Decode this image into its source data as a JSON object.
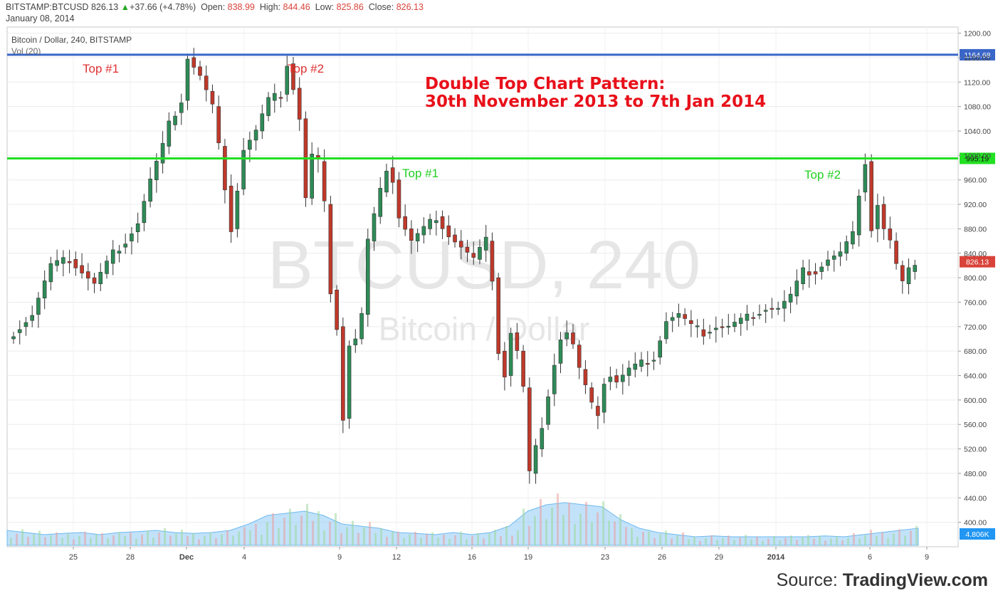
{
  "header": {
    "symbol": "BITSTAMP:BTCUSD",
    "last": "826.13",
    "change_arrow": "▲",
    "change": "+37.66 (+4.78%)",
    "open_label": "Open:",
    "open": "838.99",
    "high_label": "High:",
    "high": "844.46",
    "low_label": "Low:",
    "low": "825.86",
    "close_label": "Close:",
    "close": "826.13",
    "date": "January 08, 2014"
  },
  "legend": {
    "title": "Bitcoin / Dollar, 240, BITSTAMP",
    "volume": "Vol (20)"
  },
  "watermark": {
    "symbol": "BTCUSD, 240",
    "name": "Bitcoin / Dollar"
  },
  "annotations": {
    "headline_line1": "Double Top Chart Pattern:",
    "headline_line2": "30th November 2013 to 7th Jan 2014",
    "top1_upper": "Top #1",
    "top2_upper": "Top #2",
    "top1_lower": "Top #1",
    "top2_lower": "Top #2"
  },
  "source": {
    "prefix": "Source: ",
    "brand": "TradingView.com"
  },
  "colors": {
    "up": "#2e8b57",
    "down": "#c0392b",
    "upper_line": "#3a66c8",
    "lower_line": "#22e022",
    "headline": "#e8101a",
    "price_tag": "#d9433a",
    "volume_area": "#8fcaf5",
    "volume_tag": "#2196f3"
  },
  "chart_data": {
    "type": "candlestick",
    "price_axis": {
      "ylim": [
        360,
        1210
      ],
      "ticks": [
        "1200.00",
        "1160.00",
        "1120.00",
        "1080.00",
        "1040.00",
        "1000.00",
        "960.00",
        "920.00",
        "880.00",
        "840.00",
        "800.00",
        "760.00",
        "720.00",
        "680.00",
        "640.00",
        "600.00",
        "560.00",
        "520.00",
        "480.00",
        "440.00",
        "400.00"
      ]
    },
    "time_axis_labels": [
      "25",
      "28",
      "Dec",
      "4",
      "9",
      "12",
      "16",
      "19",
      "23",
      "26",
      "29",
      "2014",
      "6",
      "9"
    ],
    "horizontal_lines": [
      {
        "name": "resistance-1",
        "value": 1164.68,
        "label": "1164.68"
      },
      {
        "name": "resistance-2",
        "value": 995.19,
        "label": "995.19"
      }
    ],
    "last_price": {
      "value": 826.13,
      "label": "826.13"
    },
    "volume_label": "4.806K",
    "price_path": [
      [
        0,
        700
      ],
      [
        4,
        740
      ],
      [
        7,
        820
      ],
      [
        10,
        830
      ],
      [
        12,
        810
      ],
      [
        14,
        790
      ],
      [
        17,
        840
      ],
      [
        19,
        860
      ],
      [
        21,
        890
      ],
      [
        23,
        960
      ],
      [
        25,
        1015
      ],
      [
        26,
        1050
      ],
      [
        28,
        1090
      ],
      [
        29,
        1160
      ],
      [
        31,
        1130
      ],
      [
        33,
        1080
      ],
      [
        35,
        950
      ],
      [
        36,
        880
      ],
      [
        38,
        1010
      ],
      [
        40,
        1040
      ],
      [
        42,
        1090
      ],
      [
        44,
        1100
      ],
      [
        45,
        1150
      ],
      [
        46,
        1110
      ],
      [
        47,
        1060
      ],
      [
        48,
        930
      ],
      [
        49,
        1000
      ],
      [
        50,
        990
      ],
      [
        51,
        920
      ],
      [
        52,
        780
      ],
      [
        53,
        720
      ],
      [
        54,
        570
      ],
      [
        55,
        690
      ],
      [
        56,
        700
      ],
      [
        57,
        740
      ],
      [
        58,
        860
      ],
      [
        59,
        900
      ],
      [
        60,
        940
      ],
      [
        61,
        980
      ],
      [
        62,
        960
      ],
      [
        63,
        900
      ],
      [
        65,
        860
      ],
      [
        67,
        880
      ],
      [
        69,
        900
      ],
      [
        71,
        870
      ],
      [
        73,
        850
      ],
      [
        75,
        830
      ],
      [
        77,
        860
      ],
      [
        78,
        800
      ],
      [
        79,
        680
      ],
      [
        80,
        640
      ],
      [
        81,
        710
      ],
      [
        82,
        680
      ],
      [
        83,
        620
      ],
      [
        84,
        480
      ],
      [
        85,
        520
      ],
      [
        86,
        560
      ],
      [
        88,
        660
      ],
      [
        89,
        700
      ],
      [
        90,
        710
      ],
      [
        91,
        690
      ],
      [
        92,
        650
      ],
      [
        93,
        620
      ],
      [
        94,
        590
      ],
      [
        95,
        580
      ],
      [
        96,
        630
      ],
      [
        97,
        640
      ],
      [
        98,
        630
      ],
      [
        99,
        640
      ],
      [
        100,
        650
      ],
      [
        102,
        660
      ],
      [
        104,
        670
      ],
      [
        106,
        730
      ],
      [
        108,
        740
      ],
      [
        110,
        720
      ],
      [
        112,
        710
      ],
      [
        114,
        720
      ],
      [
        116,
        720
      ],
      [
        118,
        730
      ],
      [
        120,
        740
      ],
      [
        122,
        750
      ],
      [
        124,
        750
      ],
      [
        126,
        770
      ],
      [
        128,
        810
      ],
      [
        130,
        810
      ],
      [
        132,
        830
      ],
      [
        134,
        840
      ],
      [
        136,
        870
      ],
      [
        137,
        940
      ],
      [
        138,
        990
      ],
      [
        139,
        880
      ],
      [
        140,
        920
      ],
      [
        141,
        880
      ],
      [
        142,
        860
      ],
      [
        143,
        820
      ],
      [
        144,
        790
      ],
      [
        145,
        810
      ],
      [
        146,
        826
      ]
    ],
    "volume_profile": [
      0.35,
      0.3,
      0.25,
      0.28,
      0.3,
      0.25,
      0.3,
      0.32,
      0.35,
      0.3,
      0.28,
      0.3,
      0.35,
      0.5,
      0.7,
      0.75,
      0.8,
      0.7,
      0.5,
      0.45,
      0.4,
      0.3,
      0.28,
      0.25,
      0.3,
      0.25,
      0.3,
      0.45,
      0.8,
      0.95,
      1.0,
      0.95,
      0.9,
      0.6,
      0.4,
      0.3,
      0.25,
      0.2,
      0.22,
      0.2,
      0.2,
      0.2,
      0.2,
      0.2,
      0.22,
      0.2,
      0.25,
      0.3,
      0.35,
      0.4
    ]
  }
}
